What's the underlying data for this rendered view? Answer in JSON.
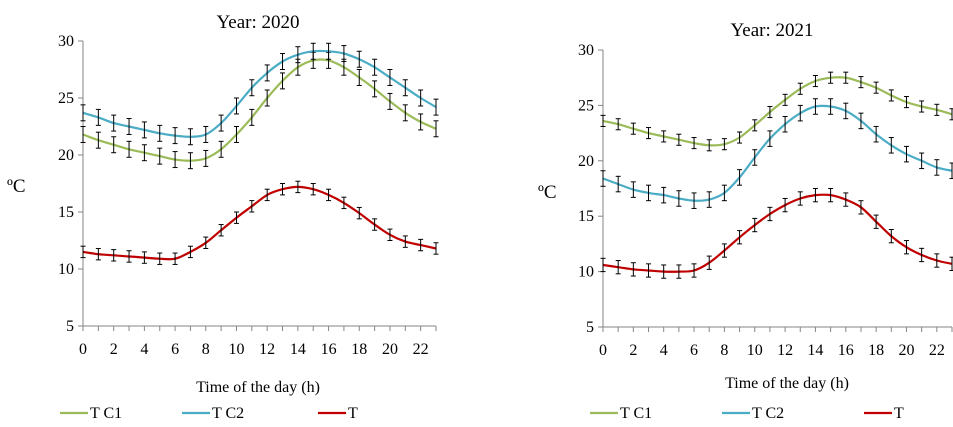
{
  "chart_data": [
    {
      "type": "line",
      "title": "Year: 2020",
      "xlabel": "Time of the day (h)",
      "ylabel": "ºC",
      "xlim": [
        0,
        23
      ],
      "ylim": [
        5,
        30
      ],
      "xticks": [
        0,
        2,
        4,
        6,
        8,
        10,
        12,
        14,
        16,
        18,
        20,
        22
      ],
      "yticks": [
        5,
        10,
        15,
        20,
        25,
        30
      ],
      "grid": false,
      "legend": "bottom",
      "error_bars": true,
      "x": [
        0,
        1,
        2,
        3,
        4,
        5,
        6,
        7,
        8,
        9,
        10,
        11,
        12,
        13,
        14,
        15,
        16,
        17,
        18,
        19,
        20,
        21,
        22,
        23
      ],
      "series": [
        {
          "name": "T C1",
          "color": "#9bbb59",
          "err": 0.7,
          "values": [
            21.8,
            21.3,
            20.9,
            20.5,
            20.2,
            19.9,
            19.6,
            19.5,
            19.7,
            20.5,
            21.8,
            23.3,
            25.0,
            26.5,
            27.7,
            28.3,
            28.3,
            27.7,
            26.8,
            25.8,
            24.7,
            23.7,
            22.9,
            22.3
          ]
        },
        {
          "name": "T C2",
          "color": "#4bacc6",
          "err": 0.7,
          "values": [
            23.7,
            23.3,
            22.8,
            22.5,
            22.2,
            21.9,
            21.7,
            21.6,
            21.8,
            22.8,
            24.3,
            25.9,
            27.2,
            28.2,
            28.8,
            29.1,
            29.1,
            28.9,
            28.4,
            27.7,
            26.8,
            25.9,
            25.0,
            24.2
          ]
        },
        {
          "name": "T",
          "color": "#c00000",
          "err": 0.5,
          "values": [
            11.5,
            11.3,
            11.2,
            11.1,
            11.0,
            10.9,
            10.9,
            11.5,
            12.3,
            13.4,
            14.5,
            15.5,
            16.5,
            17.0,
            17.2,
            17.0,
            16.5,
            15.8,
            14.9,
            13.9,
            13.0,
            12.4,
            12.1,
            11.8
          ]
        }
      ]
    },
    {
      "type": "line",
      "title": "Year: 2021",
      "xlabel": "Time of the day (h)",
      "ylabel": "ºC",
      "xlim": [
        0,
        23
      ],
      "ylim": [
        5,
        30
      ],
      "xticks": [
        0,
        2,
        4,
        6,
        8,
        10,
        12,
        14,
        16,
        18,
        20,
        22
      ],
      "yticks": [
        5,
        10,
        15,
        20,
        25,
        30
      ],
      "grid": false,
      "legend": "bottom",
      "error_bars": true,
      "x": [
        0,
        1,
        2,
        3,
        4,
        5,
        6,
        7,
        8,
        9,
        10,
        11,
        12,
        13,
        14,
        15,
        16,
        17,
        18,
        19,
        20,
        21,
        22,
        23
      ],
      "series": [
        {
          "name": "T C1",
          "color": "#9bbb59",
          "err": 0.5,
          "values": [
            23.6,
            23.3,
            22.9,
            22.5,
            22.2,
            21.9,
            21.6,
            21.4,
            21.5,
            22.1,
            23.2,
            24.4,
            25.5,
            26.5,
            27.2,
            27.5,
            27.5,
            27.1,
            26.6,
            25.9,
            25.3,
            24.9,
            24.6,
            24.2
          ]
        },
        {
          "name": "T C2",
          "color": "#4bacc6",
          "err": 0.7,
          "values": [
            18.4,
            17.9,
            17.4,
            17.1,
            16.9,
            16.6,
            16.4,
            16.5,
            17.1,
            18.5,
            20.3,
            22.0,
            23.3,
            24.3,
            24.9,
            24.9,
            24.5,
            23.6,
            22.4,
            21.4,
            20.6,
            20.0,
            19.4,
            19.1
          ]
        },
        {
          "name": "T",
          "color": "#c00000",
          "err": 0.6,
          "values": [
            10.6,
            10.4,
            10.2,
            10.1,
            10.0,
            10.0,
            10.1,
            10.8,
            11.9,
            13.1,
            14.2,
            15.2,
            16.0,
            16.6,
            16.9,
            16.9,
            16.5,
            15.8,
            14.5,
            13.2,
            12.2,
            11.5,
            11.0,
            10.7
          ]
        }
      ]
    }
  ]
}
